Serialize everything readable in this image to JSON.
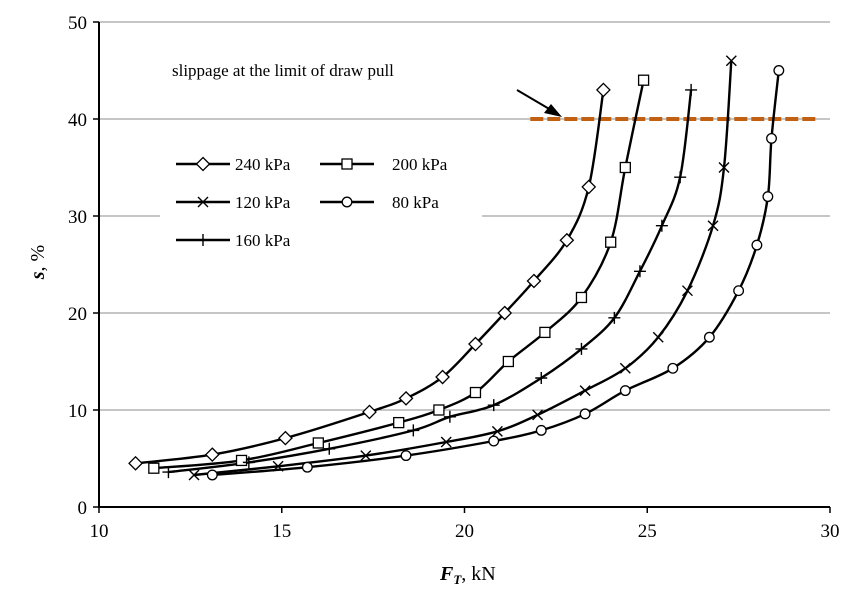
{
  "chart_data": {
    "type": "line",
    "xlabel": {
      "main": "F",
      "sub": "T",
      "unit": ", kN"
    },
    "ylabel": {
      "main": "s",
      "unit": ", %"
    },
    "xlim": [
      10,
      30
    ],
    "ylim": [
      0,
      50
    ],
    "x_ticks": [
      "10",
      "15",
      "20",
      "25",
      "30"
    ],
    "y_ticks": [
      "0",
      "10",
      "20",
      "30",
      "40",
      "50"
    ],
    "grid": {
      "horizontal": true,
      "vertical": false
    },
    "legend_position": "upper-left",
    "annotation": {
      "text": "slippage at the limit of draw pull",
      "line_y": 40,
      "line_x": [
        21.8,
        29.6
      ],
      "color": "#c06010"
    },
    "series": [
      {
        "name": "240 kPa",
        "marker": "diamond",
        "points": [
          [
            11.0,
            4.5
          ],
          [
            13.1,
            5.4
          ],
          [
            15.1,
            7.1
          ],
          [
            17.4,
            9.8
          ],
          [
            18.4,
            11.2
          ],
          [
            19.4,
            13.4
          ],
          [
            20.3,
            16.8
          ],
          [
            21.1,
            20.0
          ],
          [
            21.9,
            23.3
          ],
          [
            22.8,
            27.5
          ],
          [
            23.4,
            33.0
          ],
          [
            23.8,
            43.0
          ]
        ]
      },
      {
        "name": "200 kPa",
        "marker": "square",
        "points": [
          [
            11.5,
            4.0
          ],
          [
            13.9,
            4.8
          ],
          [
            16.0,
            6.6
          ],
          [
            18.2,
            8.7
          ],
          [
            19.3,
            10.0
          ],
          [
            20.3,
            11.8
          ],
          [
            21.2,
            15.0
          ],
          [
            22.2,
            18.0
          ],
          [
            23.2,
            21.6
          ],
          [
            24.0,
            27.3
          ],
          [
            24.4,
            35.0
          ],
          [
            24.9,
            44.0
          ]
        ]
      },
      {
        "name": "120 kPa",
        "marker": "x",
        "points": [
          [
            12.6,
            3.3
          ],
          [
            14.9,
            4.2
          ],
          [
            17.3,
            5.3
          ],
          [
            19.5,
            6.7
          ],
          [
            20.9,
            7.8
          ],
          [
            22.0,
            9.5
          ],
          [
            23.3,
            12.0
          ],
          [
            24.4,
            14.3
          ],
          [
            25.3,
            17.5
          ],
          [
            26.1,
            22.3
          ],
          [
            26.8,
            29.0
          ],
          [
            27.1,
            35.0
          ],
          [
            27.3,
            46.0
          ]
        ]
      },
      {
        "name": "80 kPa",
        "marker": "circle",
        "points": [
          [
            13.1,
            3.3
          ],
          [
            15.7,
            4.1
          ],
          [
            18.4,
            5.3
          ],
          [
            20.8,
            6.8
          ],
          [
            22.1,
            7.9
          ],
          [
            23.3,
            9.6
          ],
          [
            24.4,
            12.0
          ],
          [
            25.7,
            14.3
          ],
          [
            26.7,
            17.5
          ],
          [
            27.5,
            22.3
          ],
          [
            28.0,
            27.0
          ],
          [
            28.3,
            32.0
          ],
          [
            28.4,
            38.0
          ],
          [
            28.6,
            45.0
          ]
        ]
      },
      {
        "name": "160 kPa",
        "marker": "plus",
        "points": [
          [
            11.9,
            3.6
          ],
          [
            14.1,
            4.6
          ],
          [
            16.3,
            6.0
          ],
          [
            18.6,
            7.9
          ],
          [
            19.6,
            9.3
          ],
          [
            20.8,
            10.5
          ],
          [
            22.1,
            13.3
          ],
          [
            23.2,
            16.3
          ],
          [
            24.1,
            19.5
          ],
          [
            24.8,
            24.3
          ],
          [
            25.4,
            29.0
          ],
          [
            25.9,
            34.0
          ],
          [
            26.2,
            43.0
          ]
        ]
      }
    ]
  }
}
